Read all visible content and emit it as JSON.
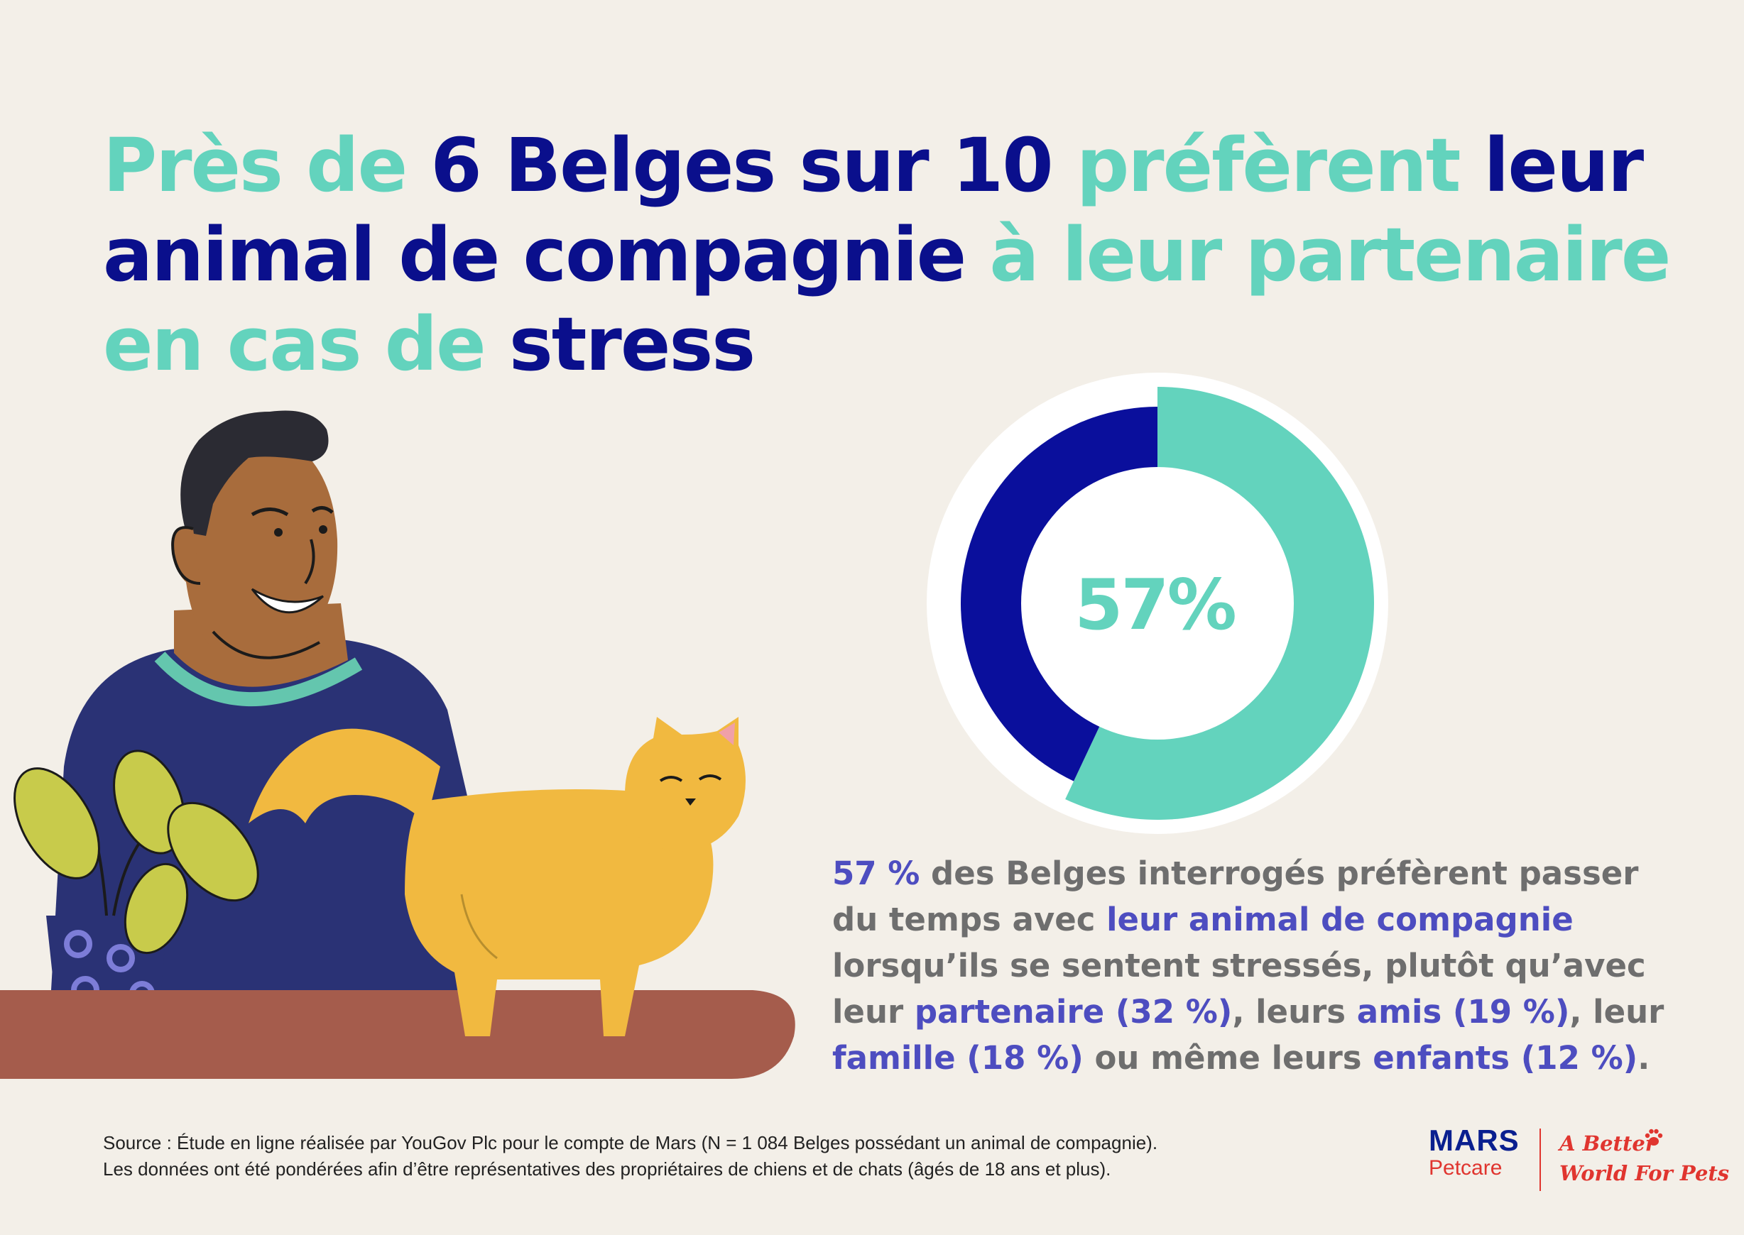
{
  "headline": {
    "line1": [
      {
        "text": "Près de ",
        "color": "teal"
      },
      {
        "text": "6 Belges sur 10 ",
        "color": "navy"
      },
      {
        "text": "préfèrent ",
        "color": "teal"
      },
      {
        "text": "leur",
        "color": "navy"
      }
    ],
    "line2": [
      {
        "text": "animal de compagnie ",
        "color": "navy"
      },
      {
        "text": "à leur partenaire",
        "color": "teal"
      }
    ],
    "line3": [
      {
        "text": "en cas de ",
        "color": "teal"
      },
      {
        "text": "stress",
        "color": "navy"
      }
    ]
  },
  "chart_data": {
    "type": "pie",
    "variant": "donut",
    "center_label": "57%",
    "slices": [
      {
        "value": 57,
        "color": "#63d3bd"
      },
      {
        "value": 43,
        "color": "#0a0f9c"
      }
    ]
  },
  "body": {
    "line1": [
      {
        "text": "57 %",
        "hl": true
      },
      {
        "text": " des Belges interrogés préfèrent passer",
        "hl": false
      }
    ],
    "line2": [
      {
        "text": "du temps avec ",
        "hl": false
      },
      {
        "text": "leur animal de compagnie",
        "hl": true
      }
    ],
    "line3": [
      {
        "text": "lorsqu’ils se sentent stressés, plutôt qu’avec",
        "hl": false
      }
    ],
    "line4": [
      {
        "text": "leur ",
        "hl": false
      },
      {
        "text": "partenaire (32 %)",
        "hl": true
      },
      {
        "text": ", leurs ",
        "hl": false
      },
      {
        "text": "amis (19 %)",
        "hl": true
      },
      {
        "text": ", leur",
        "hl": false
      }
    ],
    "line5": [
      {
        "text": "famille (18 %)",
        "hl": true
      },
      {
        "text": " ou même leurs ",
        "hl": false
      },
      {
        "text": "enfants (12 %)",
        "hl": true
      },
      {
        "text": ".",
        "hl": false
      }
    ]
  },
  "source": {
    "line1": "Source : Étude en ligne réalisée par YouGov Plc pour le compte de Mars (N = 1 084 Belges possédant un animal de compagnie).",
    "line2": "Les données ont été pondérées afin d’être représentatives des propriétaires de chiens et de chats (âgés de 18 ans et plus)."
  },
  "logo": {
    "brand": "MARS",
    "sub": "Petcare",
    "tagline_line1": "A Better",
    "tagline_line2": "World For Pets"
  },
  "colors": {
    "teal": "#63d3bd",
    "navy": "#0a0f8c",
    "highlight": "#4d4dc0",
    "body_gray": "#6e6e6e",
    "background": "#f3efe8"
  },
  "illustration": {
    "icons": [
      "man-figure",
      "cat-figure",
      "plant-figure"
    ]
  }
}
